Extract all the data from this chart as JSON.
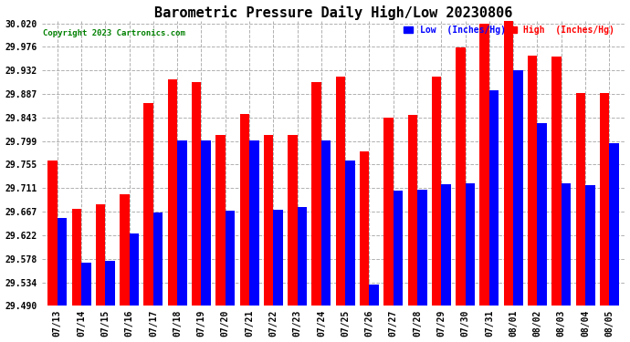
{
  "title": "Barometric Pressure Daily High/Low 20230806",
  "copyright": "Copyright 2023 Cartronics.com",
  "legend_low": "Low  (Inches/Hg)",
  "legend_high": "High  (Inches/Hg)",
  "dates": [
    "07/13",
    "07/14",
    "07/15",
    "07/16",
    "07/17",
    "07/18",
    "07/19",
    "07/20",
    "07/21",
    "07/22",
    "07/23",
    "07/24",
    "07/25",
    "07/26",
    "07/27",
    "07/28",
    "07/29",
    "07/30",
    "07/31",
    "08/01",
    "08/02",
    "08/03",
    "08/04",
    "08/05"
  ],
  "high": [
    29.762,
    29.672,
    29.68,
    29.7,
    29.87,
    29.915,
    29.91,
    29.81,
    29.85,
    29.81,
    29.81,
    29.91,
    29.92,
    29.78,
    29.843,
    29.848,
    29.92,
    29.975,
    30.02,
    30.025,
    29.96,
    29.957,
    29.89,
    29.89
  ],
  "low": [
    29.655,
    29.57,
    29.575,
    29.625,
    29.665,
    29.8,
    29.8,
    29.668,
    29.8,
    29.67,
    29.675,
    29.8,
    29.762,
    29.53,
    29.706,
    29.708,
    29.718,
    29.72,
    29.895,
    29.932,
    29.832,
    29.72,
    29.716,
    29.795
  ],
  "ylim_min": 29.49,
  "ylim_max": 30.02,
  "yticks": [
    29.49,
    29.534,
    29.578,
    29.622,
    29.667,
    29.711,
    29.755,
    29.799,
    29.843,
    29.887,
    29.932,
    29.976,
    30.02
  ],
  "bar_color_high": "#ff0000",
  "bar_color_low": "#0000ff",
  "bg_color": "#ffffff",
  "grid_color": "#b0b0b0",
  "title_fontsize": 11,
  "tick_fontsize": 7,
  "bar_width": 0.4
}
